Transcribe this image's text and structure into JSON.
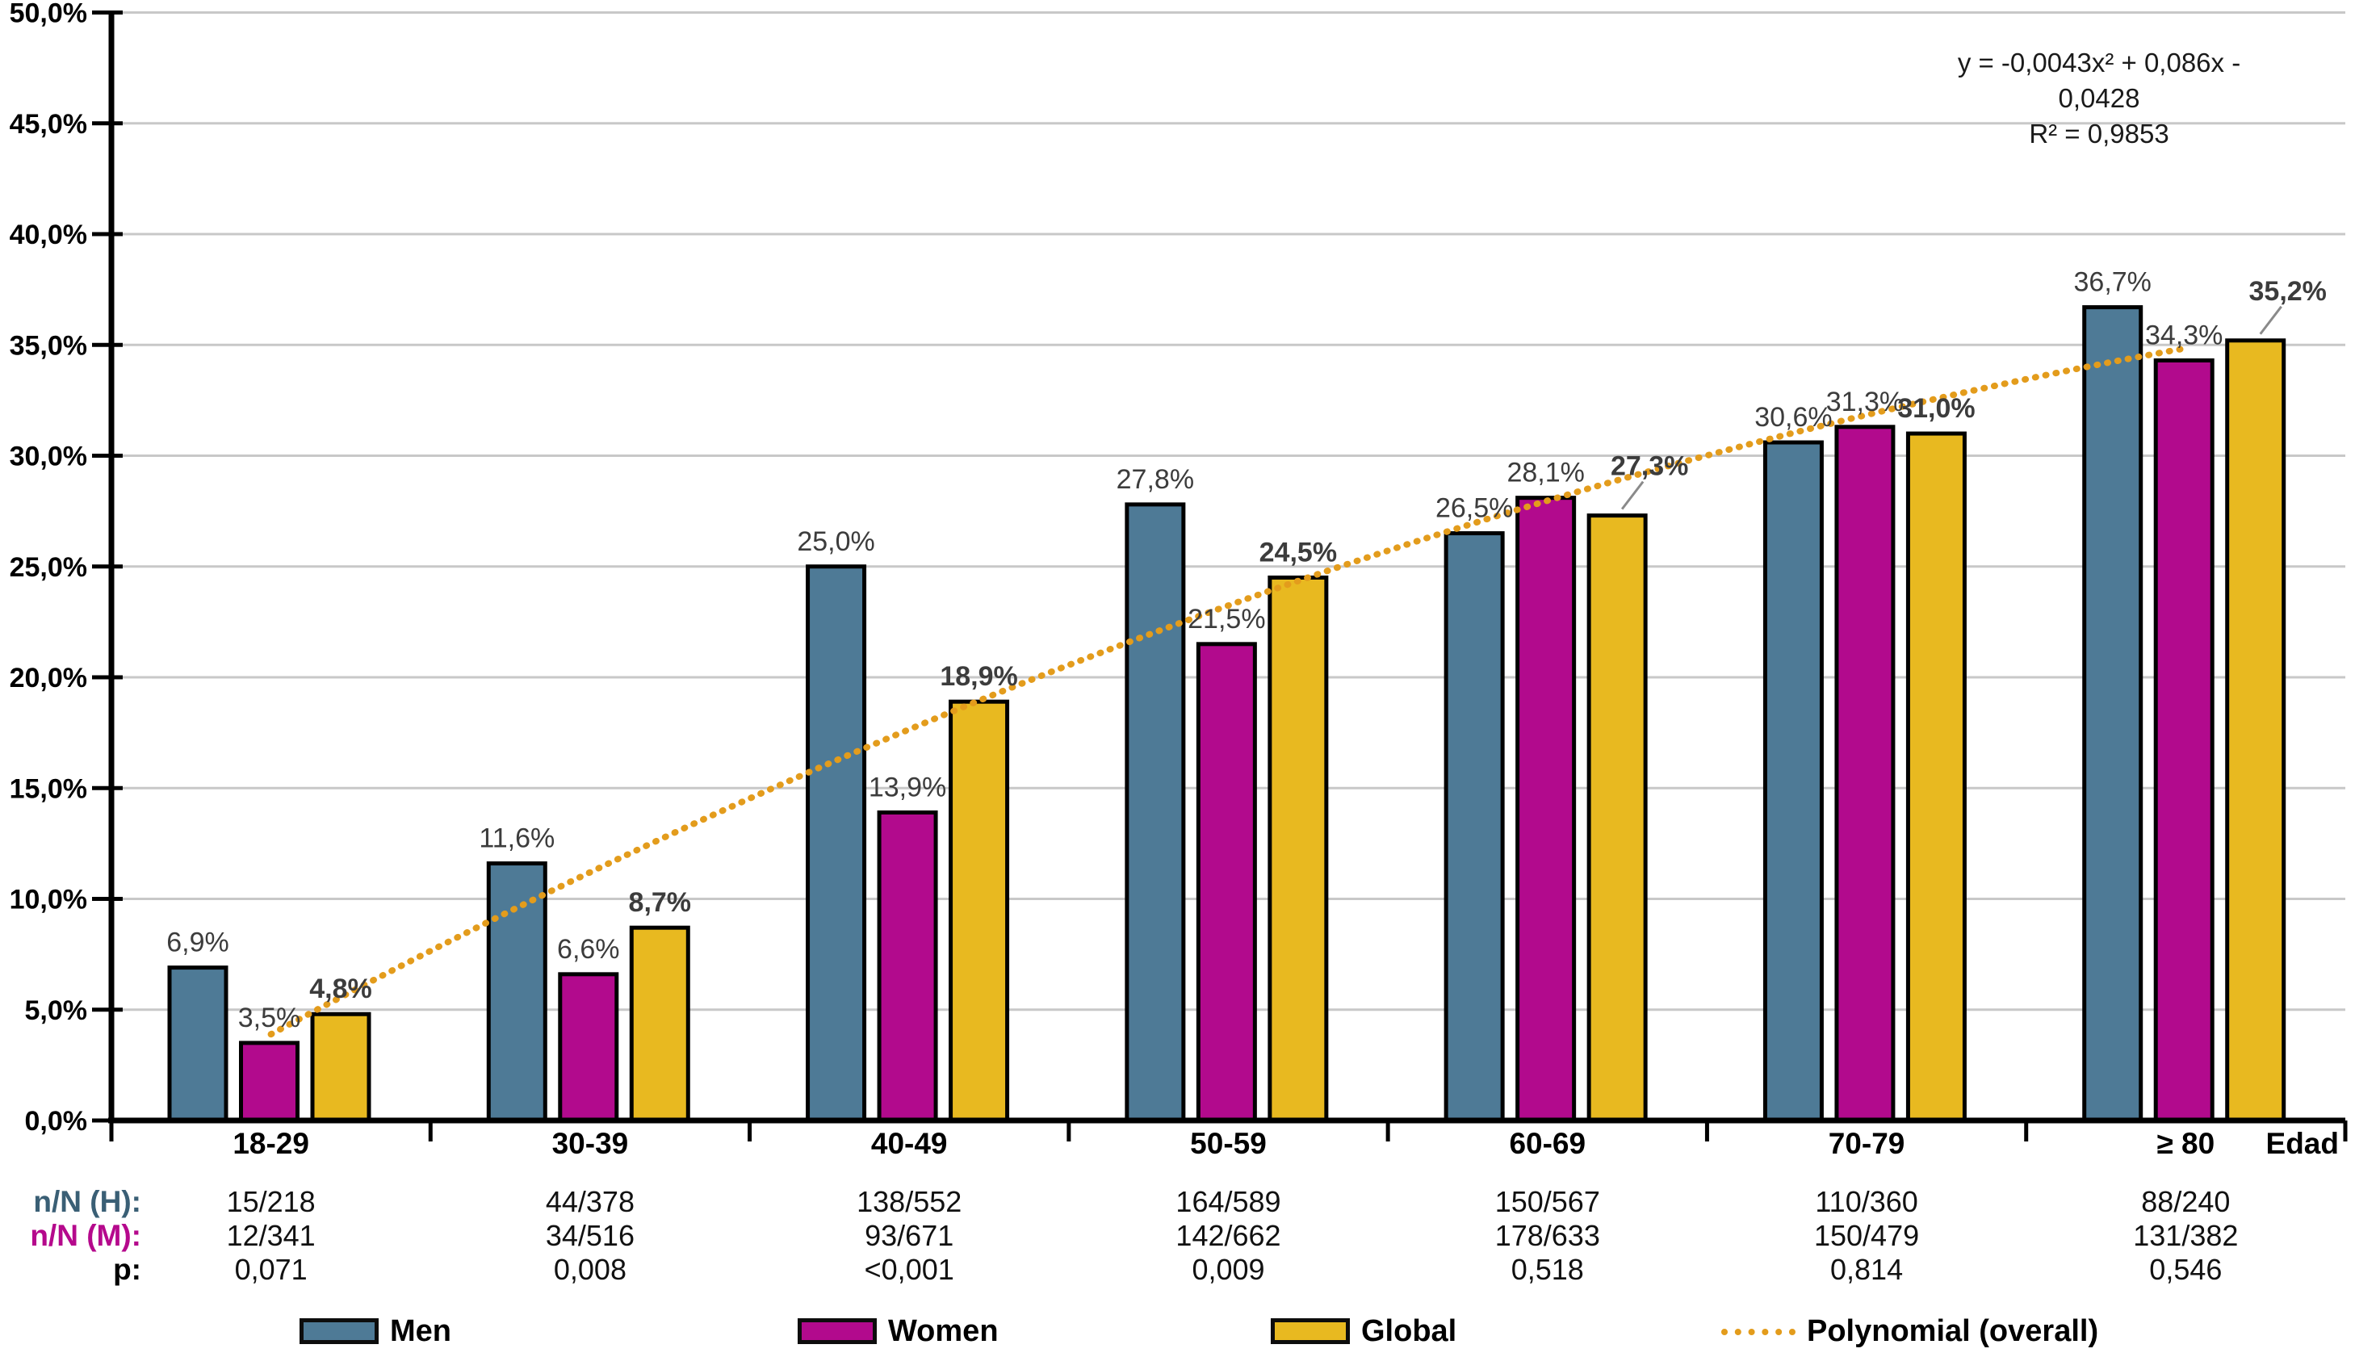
{
  "chart_data": {
    "type": "bar",
    "title": "",
    "categories": [
      "18-29",
      "30-39",
      "40-49",
      "50-59",
      "60-69",
      "70-79",
      "≥ 80"
    ],
    "series": [
      {
        "name": "Men",
        "color": "#4e7a96",
        "values": [
          6.9,
          11.6,
          25.0,
          27.8,
          26.5,
          30.6,
          36.7
        ],
        "labels": [
          "6,9%",
          "11,6%",
          "25,0%",
          "27,8%",
          "26,5%",
          "30,6%",
          "36,7%"
        ],
        "bold_labels": false
      },
      {
        "name": "Women",
        "color": "#b20a8d",
        "values": [
          3.5,
          6.6,
          13.9,
          21.5,
          28.1,
          31.3,
          34.3
        ],
        "labels": [
          "3,5%",
          "6,6%",
          "13,9%",
          "21,5%",
          "28,1%",
          "31,3%",
          "34,3%"
        ],
        "bold_labels": false
      },
      {
        "name": "Global",
        "color": "#e8b920",
        "values": [
          4.8,
          8.7,
          18.9,
          24.5,
          27.3,
          31.0,
          35.2
        ],
        "labels": [
          "4,8%",
          "8,7%",
          "18,9%",
          "24,5%",
          "27,3%",
          "31,0%",
          "35,2%"
        ],
        "bold_labels": true,
        "label_callout_indices": [
          4,
          6
        ]
      }
    ],
    "trendline": {
      "name": "Polynomial (overall)",
      "color": "#e39c1c",
      "style": "dotted",
      "coefficients": {
        "a": -0.0043,
        "b": 0.086,
        "c": -0.0428
      },
      "equation": "y = -0,0043x² + 0,086x - 0,0428",
      "r_squared": "R² = 0,9853"
    },
    "y_axis": {
      "min": 0,
      "max": 50,
      "step": 5,
      "ticks": [
        "0,0%",
        "5,0%",
        "10,0%",
        "15,0%",
        "20,0%",
        "25,0%",
        "30,0%",
        "35,0%",
        "40,0%",
        "45,0%",
        "50,0%"
      ]
    },
    "x_axis_label": "Edad",
    "grid": true,
    "legend_position": "bottom"
  },
  "annotation": {
    "equation": "y = -0,0043x² + 0,086x - 0,0428",
    "r2": "R² = 0,9853"
  },
  "stats_table": {
    "rows": [
      {
        "label": "n/N (H):",
        "color": "#3a5f75",
        "values": [
          "15/218",
          "44/378",
          "138/552",
          "164/589",
          "150/567",
          "110/360",
          "88/240"
        ]
      },
      {
        "label": "n/N (M):",
        "color": "#b5098c",
        "values": [
          "12/341",
          "34/516",
          "93/671",
          "142/662",
          "178/633",
          "150/479",
          "131/382"
        ]
      },
      {
        "label": "p:",
        "color": "#000000",
        "values": [
          "0,071",
          "0,008",
          "<0,001",
          "0,009",
          "0,518",
          "0,814",
          "0,546"
        ]
      }
    ]
  },
  "legend": {
    "items": [
      {
        "label": "Men",
        "color": "#4e7a96",
        "type": "swatch"
      },
      {
        "label": "Women",
        "color": "#b20a8d",
        "type": "swatch"
      },
      {
        "label": "Global",
        "color": "#e8b920",
        "type": "swatch"
      },
      {
        "label": "Polynomial (overall)",
        "color": "#e39c1c",
        "type": "dotted-line"
      }
    ]
  },
  "colors": {
    "grid": "#c8c8c8",
    "axis": "#000000",
    "bar_border": "#000000",
    "bar_label": "#3c3c3c",
    "callout_leader": "#8a8a8a"
  }
}
